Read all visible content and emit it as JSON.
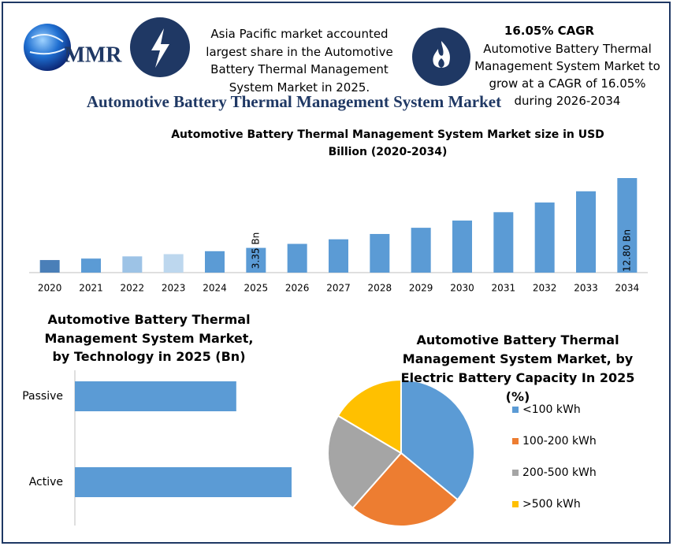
{
  "header": {
    "logo_text": "MMR",
    "note_left": "Asia Pacific market accounted largest share in the Automotive Battery Thermal Management System Market in 2025.",
    "cagr_title": "16.05% CAGR",
    "note_right": "Automotive Battery Thermal Management System Market to grow at a CAGR of 16.05% during 2026-2034",
    "title": "Automotive Battery Thermal Management System Market"
  },
  "chart_data": [
    {
      "type": "bar",
      "title": "Automotive Battery Thermal Management System Market size in USD Billion (2020-2034)",
      "categories": [
        "2020",
        "2021",
        "2022",
        "2023",
        "2024",
        "2025",
        "2026",
        "2027",
        "2028",
        "2029",
        "2030",
        "2031",
        "2032",
        "2033",
        "2034"
      ],
      "values": [
        1.7,
        1.9,
        2.2,
        2.5,
        2.9,
        3.35,
        3.89,
        4.51,
        5.23,
        6.07,
        7.05,
        8.18,
        9.49,
        11.01,
        12.8
      ],
      "value_labels": [
        null,
        null,
        null,
        null,
        null,
        "3.35 Bn",
        null,
        null,
        null,
        null,
        null,
        null,
        null,
        null,
        "12.80 Bn"
      ],
      "colors": [
        "#4a7fb8",
        "#5b9bd5",
        "#9dc3e6",
        "#bdd7ee",
        "#5b9bd5",
        "#5b9bd5",
        "#5b9bd5",
        "#5b9bd5",
        "#5b9bd5",
        "#5b9bd5",
        "#5b9bd5",
        "#5b9bd5",
        "#5b9bd5",
        "#5b9bd5",
        "#5b9bd5"
      ]
    },
    {
      "type": "hbar",
      "title": "Automotive Battery Thermal Management System Market, by Technology in 2025 (Bn)",
      "categories": [
        "Passive",
        "Active"
      ],
      "values": [
        1.43,
        1.92
      ],
      "color": "#5b9bd5"
    },
    {
      "type": "pie",
      "title": "Automotive Battery Thermal Management System Market, by Electric Battery Capacity In 2025 (%)",
      "categories": [
        "<100 kWh",
        "100-200 kWh",
        "200-500 kWh",
        ">500 kWh"
      ],
      "values": [
        36,
        25.5,
        22,
        16.5
      ],
      "colors": [
        "#5b9bd5",
        "#ed7d31",
        "#a5a5a5",
        "#ffc000"
      ]
    }
  ]
}
